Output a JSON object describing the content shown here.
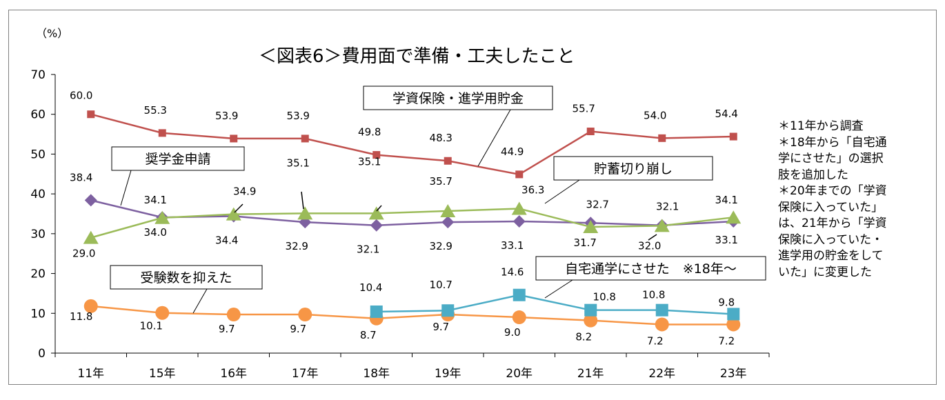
{
  "chart_data": {
    "type": "line",
    "title": "＜図表6＞費用面で準備・工夫したこと",
    "ylabel": "（%）",
    "xlabel": "",
    "categories": [
      "11年",
      "15年",
      "16年",
      "17年",
      "18年",
      "19年",
      "20年",
      "21年",
      "22年",
      "23年"
    ],
    "y_ticks": [
      "0",
      "10",
      "20",
      "30",
      "40",
      "50",
      "60",
      "70"
    ],
    "ylim": [
      0,
      70
    ],
    "grid": false,
    "series": [
      {
        "name": "学資保険・進学用貯金",
        "color": "#c0504d",
        "marker": "square",
        "values": [
          60.0,
          55.3,
          53.9,
          53.9,
          49.8,
          48.3,
          44.9,
          55.7,
          54.0,
          54.4
        ],
        "labels": [
          "60.0",
          "55.3",
          "53.9",
          "53.9",
          "49.8",
          "48.3",
          "44.9",
          "55.7",
          "54.0",
          "54.4"
        ]
      },
      {
        "name": "奨学金申請",
        "color": "#7d60a0",
        "marker": "diamond",
        "values": [
          38.4,
          34.1,
          34.4,
          32.9,
          32.1,
          32.9,
          33.1,
          32.7,
          32.1,
          33.1
        ],
        "labels": [
          "38.4",
          "34.1",
          "34.4",
          "32.9",
          "32.1",
          "32.9",
          "33.1",
          "32.7",
          "32.1",
          "33.1"
        ]
      },
      {
        "name": "貯蓄切り崩し",
        "color": "#9bbb59",
        "marker": "triangle",
        "values": [
          29.0,
          34.0,
          34.9,
          35.1,
          35.1,
          35.7,
          36.3,
          31.7,
          32.0,
          34.1
        ],
        "labels": [
          "29.0",
          "34.0",
          "34.9",
          "35.1",
          "35.1",
          "35.7",
          "36.3",
          "31.7",
          "32.0",
          "34.1"
        ]
      },
      {
        "name": "受験数を抑えた",
        "color": "#f79646",
        "marker": "circle",
        "values": [
          11.8,
          10.1,
          9.7,
          9.7,
          8.7,
          9.7,
          9.0,
          8.2,
          7.2,
          7.2
        ],
        "labels": [
          "11.8",
          "10.1",
          "9.7",
          "9.7",
          "8.7",
          "9.7",
          "9.0",
          "8.2",
          "7.2",
          "7.2"
        ]
      },
      {
        "name": "自宅通学にさせた　※18年～",
        "color": "#4bacc6",
        "marker": "square",
        "values": [
          null,
          null,
          null,
          null,
          10.4,
          10.7,
          14.6,
          10.8,
          10.8,
          9.8
        ],
        "labels": [
          null,
          null,
          null,
          null,
          "10.4",
          "10.7",
          "14.6",
          "10.8",
          "10.8",
          "9.8"
        ]
      }
    ]
  },
  "notes": [
    "＊11年から調査",
    "＊18年から「自宅通",
    "学にさせた」の選択",
    "肢を追加した",
    "＊20年までの「学資",
    "保険に入っていた」",
    "は、21年から「学資",
    "保険に入っていた・",
    "進学用の貯金をして",
    "いた」に変更した"
  ]
}
